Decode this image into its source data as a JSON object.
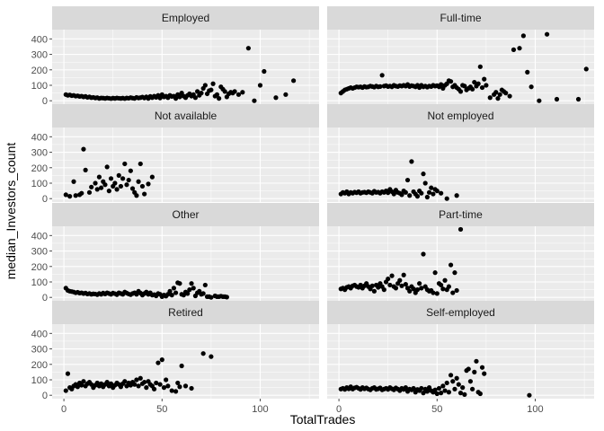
{
  "chart_data": {
    "type": "scatter",
    "xlabel": "TotalTrades",
    "ylabel": "median_Investors_count",
    "xlim": [
      -6,
      130
    ],
    "ylim": [
      -22,
      460
    ],
    "x_ticks": [
      0,
      50,
      100
    ],
    "y_ticks": [
      0,
      100,
      200,
      300,
      400
    ],
    "grid": true,
    "layout": "facet grid, 4 rows x 2 columns",
    "colors": {
      "strip_bg": "#d9d9d9",
      "panel_bg": "#ebebeb",
      "grid": "#ffffff",
      "point": "#000000",
      "tick": "#4d4d4d",
      "text": "#1a1a1a"
    },
    "panels": [
      {
        "label": "Employed",
        "x": [
          1,
          2,
          3,
          4,
          5,
          6,
          7,
          8,
          9,
          10,
          11,
          12,
          13,
          14,
          15,
          16,
          17,
          18,
          19,
          20,
          21,
          22,
          23,
          24,
          25,
          26,
          27,
          28,
          29,
          30,
          31,
          32,
          33,
          34,
          35,
          36,
          37,
          38,
          39,
          40,
          41,
          42,
          43,
          44,
          45,
          46,
          47,
          48,
          49,
          50,
          51,
          52,
          53,
          54,
          55,
          56,
          57,
          58,
          59,
          60,
          61,
          62,
          63,
          64,
          65,
          66,
          67,
          68,
          69,
          70,
          71,
          72,
          73,
          74,
          75,
          76,
          77,
          78,
          79,
          80,
          81,
          82,
          83,
          84,
          85,
          86,
          87,
          89,
          91,
          94,
          97,
          100,
          102,
          108,
          113,
          117
        ],
        "y": [
          40,
          35,
          38,
          33,
          35,
          30,
          32,
          28,
          30,
          25,
          28,
          22,
          25,
          20,
          22,
          18,
          20,
          15,
          18,
          17,
          15,
          18,
          16,
          14,
          17,
          15,
          18,
          16,
          15,
          17,
          14,
          18,
          16,
          20,
          17,
          15,
          22,
          18,
          20,
          24,
          18,
          25,
          15,
          28,
          20,
          30,
          22,
          35,
          18,
          40,
          25,
          30,
          20,
          35,
          28,
          30,
          15,
          40,
          25,
          50,
          30,
          20,
          35,
          45,
          30,
          40,
          20,
          60,
          35,
          50,
          80,
          100,
          45,
          65,
          70,
          110,
          30,
          40,
          15,
          90,
          75,
          60,
          25,
          45,
          55,
          50,
          60,
          40,
          55,
          340,
          0,
          100,
          190,
          20,
          40,
          130
        ]
      },
      {
        "label": "Full-time",
        "x": [
          1,
          2,
          3,
          4,
          5,
          6,
          7,
          8,
          9,
          10,
          11,
          12,
          13,
          14,
          15,
          16,
          17,
          18,
          19,
          20,
          21,
          22,
          23,
          24,
          25,
          26,
          27,
          28,
          29,
          30,
          31,
          32,
          33,
          34,
          35,
          36,
          37,
          38,
          39,
          40,
          41,
          42,
          43,
          44,
          45,
          46,
          47,
          48,
          49,
          50,
          51,
          52,
          53,
          54,
          55,
          56,
          57,
          58,
          59,
          60,
          61,
          62,
          63,
          64,
          65,
          66,
          67,
          68,
          69,
          70,
          71,
          72,
          73,
          74,
          75,
          77,
          79,
          80,
          81,
          82,
          83,
          84,
          85,
          87,
          89,
          92,
          94,
          96,
          98,
          102,
          106,
          111,
          122,
          126
        ],
        "y": [
          50,
          60,
          70,
          75,
          80,
          85,
          80,
          85,
          90,
          88,
          90,
          85,
          92,
          88,
          90,
          95,
          92,
          88,
          95,
          90,
          92,
          165,
          95,
          98,
          92,
          95,
          90,
          100,
          95,
          92,
          98,
          95,
          100,
          95,
          105,
          92,
          98,
          95,
          90,
          100,
          85,
          100,
          90,
          95,
          88,
          95,
          92,
          100,
          95,
          98,
          90,
          105,
          80,
          100,
          110,
          130,
          125,
          90,
          100,
          85,
          75,
          60,
          100,
          95,
          70,
          80,
          90,
          75,
          120,
          95,
          110,
          220,
          85,
          140,
          100,
          20,
          40,
          55,
          15,
          40,
          70,
          60,
          50,
          30,
          330,
          340,
          420,
          185,
          90,
          0,
          430,
          10,
          10,
          205
        ]
      },
      {
        "label": "Not available",
        "x": [
          1,
          3,
          5,
          6,
          8,
          9,
          10,
          11,
          13,
          14,
          16,
          17,
          18,
          19,
          20,
          21,
          22,
          23,
          24,
          25,
          26,
          27,
          28,
          29,
          30,
          31,
          32,
          33,
          34,
          35,
          36,
          37,
          38,
          39,
          40,
          41,
          43,
          45
        ],
        "y": [
          25,
          15,
          110,
          20,
          25,
          35,
          320,
          185,
          40,
          75,
          100,
          60,
          140,
          70,
          110,
          90,
          205,
          50,
          130,
          80,
          100,
          60,
          150,
          80,
          130,
          225,
          90,
          120,
          180,
          65,
          40,
          20,
          110,
          225,
          80,
          30,
          95,
          140
        ]
      },
      {
        "label": "Not employed",
        "x": [
          1,
          2,
          3,
          4,
          5,
          6,
          7,
          8,
          9,
          10,
          11,
          12,
          13,
          14,
          15,
          16,
          17,
          18,
          19,
          20,
          21,
          22,
          23,
          24,
          25,
          26,
          27,
          28,
          29,
          30,
          31,
          32,
          33,
          34,
          35,
          36,
          37,
          38,
          39,
          40,
          41,
          42,
          43,
          44,
          45,
          46,
          47,
          48,
          49,
          50,
          52,
          55,
          60
        ],
        "y": [
          30,
          40,
          35,
          45,
          30,
          40,
          35,
          42,
          38,
          45,
          35,
          40,
          42,
          38,
          45,
          40,
          35,
          48,
          40,
          42,
          35,
          45,
          40,
          50,
          38,
          60,
          45,
          30,
          55,
          40,
          35,
          25,
          50,
          40,
          120,
          20,
          240,
          45,
          30,
          15,
          50,
          35,
          160,
          100,
          10,
          40,
          70,
          30,
          60,
          50,
          35,
          0,
          20
        ]
      },
      {
        "label": "Other",
        "x": [
          1,
          2,
          3,
          4,
          5,
          6,
          7,
          8,
          9,
          10,
          11,
          12,
          13,
          14,
          15,
          16,
          17,
          18,
          19,
          20,
          21,
          22,
          23,
          24,
          25,
          26,
          27,
          28,
          29,
          30,
          31,
          32,
          33,
          34,
          35,
          36,
          37,
          38,
          39,
          40,
          41,
          42,
          43,
          44,
          45,
          46,
          47,
          48,
          49,
          50,
          51,
          52,
          53,
          54,
          55,
          56,
          57,
          58,
          59,
          60,
          61,
          62,
          63,
          64,
          65,
          66,
          67,
          68,
          69,
          70,
          71,
          72,
          73,
          74,
          75,
          77,
          78,
          79,
          80,
          81,
          82,
          83
        ],
        "y": [
          60,
          45,
          40,
          38,
          35,
          30,
          33,
          28,
          30,
          25,
          28,
          22,
          25,
          20,
          23,
          22,
          18,
          25,
          20,
          28,
          22,
          30,
          25,
          20,
          28,
          24,
          18,
          30,
          25,
          20,
          35,
          28,
          22,
          18,
          25,
          30,
          20,
          40,
          28,
          15,
          25,
          35,
          20,
          30,
          15,
          18,
          10,
          25,
          20,
          5,
          15,
          8,
          20,
          40,
          15,
          60,
          30,
          95,
          90,
          20,
          15,
          35,
          25,
          50,
          90,
          60,
          10,
          30,
          40,
          20,
          25,
          80,
          5,
          5,
          0,
          10,
          5,
          5,
          8,
          5,
          5,
          2
        ]
      },
      {
        "label": "Part-time",
        "x": [
          1,
          2,
          3,
          4,
          5,
          6,
          7,
          8,
          9,
          10,
          11,
          12,
          13,
          14,
          15,
          16,
          17,
          18,
          19,
          20,
          21,
          22,
          23,
          24,
          25,
          26,
          27,
          28,
          29,
          30,
          31,
          32,
          33,
          34,
          35,
          36,
          37,
          38,
          39,
          40,
          41,
          42,
          43,
          44,
          45,
          46,
          47,
          48,
          49,
          50,
          51,
          52,
          53,
          54,
          55,
          56,
          57,
          58,
          59,
          60,
          62
        ],
        "y": [
          55,
          60,
          50,
          65,
          70,
          60,
          75,
          80,
          70,
          65,
          80,
          60,
          75,
          90,
          70,
          55,
          75,
          40,
          80,
          65,
          90,
          70,
          50,
          100,
          120,
          80,
          140,
          70,
          60,
          90,
          110,
          75,
          145,
          85,
          60,
          40,
          70,
          55,
          30,
          50,
          90,
          60,
          280,
          70,
          50,
          40,
          45,
          30,
          160,
          25,
          90,
          80,
          55,
          110,
          50,
          70,
          210,
          30,
          160,
          45,
          440
        ]
      },
      {
        "label": "Retired",
        "x": [
          1,
          2,
          3,
          4,
          5,
          6,
          7,
          8,
          9,
          10,
          11,
          12,
          13,
          14,
          15,
          16,
          17,
          18,
          19,
          20,
          21,
          22,
          23,
          24,
          25,
          26,
          27,
          28,
          29,
          30,
          31,
          32,
          33,
          34,
          35,
          36,
          37,
          38,
          39,
          40,
          41,
          42,
          43,
          44,
          45,
          46,
          47,
          48,
          49,
          50,
          51,
          52,
          53,
          55,
          57,
          58,
          59,
          60,
          62,
          65,
          71,
          75
        ],
        "y": [
          30,
          140,
          50,
          40,
          60,
          70,
          55,
          80,
          65,
          90,
          60,
          75,
          85,
          70,
          50,
          65,
          80,
          60,
          75,
          55,
          70,
          85,
          60,
          75,
          50,
          65,
          80,
          70,
          55,
          75,
          90,
          60,
          80,
          65,
          85,
          70,
          100,
          60,
          110,
          75,
          85,
          50,
          90,
          70,
          60,
          40,
          80,
          210,
          70,
          230,
          50,
          100,
          60,
          30,
          25,
          80,
          55,
          190,
          60,
          45,
          270,
          250
        ]
      },
      {
        "label": "Self-employed",
        "x": [
          1,
          2,
          3,
          4,
          5,
          6,
          7,
          8,
          9,
          10,
          11,
          12,
          13,
          14,
          15,
          16,
          17,
          18,
          19,
          20,
          21,
          22,
          23,
          24,
          25,
          26,
          27,
          28,
          29,
          30,
          31,
          32,
          33,
          34,
          35,
          36,
          37,
          38,
          39,
          40,
          41,
          42,
          43,
          44,
          45,
          46,
          47,
          48,
          49,
          50,
          51,
          52,
          53,
          54,
          55,
          56,
          57,
          58,
          59,
          60,
          61,
          62,
          63,
          64,
          65,
          66,
          67,
          68,
          69,
          70,
          71,
          72,
          73,
          74,
          97
        ],
        "y": [
          40,
          45,
          38,
          50,
          42,
          55,
          40,
          48,
          52,
          45,
          38,
          50,
          42,
          48,
          40,
          35,
          45,
          50,
          38,
          42,
          48,
          35,
          40,
          45,
          38,
          50,
          42,
          35,
          48,
          40,
          30,
          45,
          38,
          50,
          25,
          40,
          35,
          45,
          20,
          38,
          30,
          45,
          15,
          40,
          25,
          50,
          30,
          20,
          35,
          10,
          45,
          15,
          60,
          30,
          80,
          20,
          130,
          90,
          40,
          110,
          70,
          15,
          50,
          5,
          160,
          170,
          90,
          40,
          150,
          220,
          20,
          10,
          180,
          140,
          0
        ]
      }
    ]
  }
}
